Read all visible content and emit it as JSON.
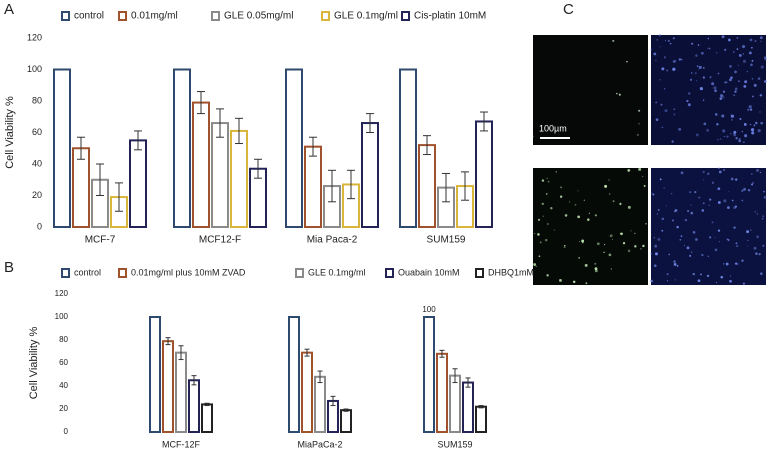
{
  "panel_labels": [
    "A",
    "B",
    "C"
  ],
  "image_panel": {
    "scale_bar": "100µm"
  },
  "chart_data": [
    {
      "type": "bar",
      "ylabel": "Cell Viability %",
      "categories": [
        "MCF-7",
        "MCF12-F",
        "Mia Paca-2",
        "SUM159"
      ],
      "series": [
        {
          "name": "control",
          "color": "#2e4a6e",
          "values": [
            100,
            100,
            100,
            100
          ]
        },
        {
          "name": "0.01mg/ml",
          "color": "#a0522d",
          "values": [
            50,
            79,
            51,
            52
          ],
          "errors": [
            7,
            7,
            6,
            6
          ]
        },
        {
          "name": "GLE 0.05mg/ml",
          "color": "#8a8a8a",
          "values": [
            30,
            66,
            26,
            25
          ],
          "errors": [
            10,
            9,
            10,
            9
          ]
        },
        {
          "name": "GLE 0.1mg/ml",
          "color": "#d9b53a",
          "values": [
            19,
            61,
            27,
            26
          ],
          "errors": [
            9,
            8,
            9,
            9
          ]
        },
        {
          "name": "Cis-platin 10mM",
          "color": "#232357",
          "values": [
            55,
            37,
            66,
            67
          ],
          "errors": [
            6,
            6,
            6,
            6
          ]
        }
      ],
      "ylim": [
        0,
        120
      ],
      "yticks": [
        0,
        20,
        40,
        60,
        80,
        100,
        120
      ],
      "grid": false
    },
    {
      "type": "bar",
      "ylabel": "Cell Viability %",
      "categories": [
        "MCF-12F",
        "MiaPaCa-2",
        "SUM159"
      ],
      "series": [
        {
          "name": "control",
          "color": "#2e4a6e",
          "values": [
            100,
            100,
            100
          ],
          "value_labels": [
            null,
            null,
            "100"
          ]
        },
        {
          "name": "0.01mg/ml plus 10mM ZVAD",
          "color": "#a0522d",
          "values": [
            79,
            69,
            68
          ],
          "errors": [
            3,
            3,
            3
          ]
        },
        {
          "name": "GLE 0.1mg/ml",
          "color": "#8a8a8a",
          "values": [
            69,
            48,
            49
          ],
          "errors": [
            6,
            5,
            6
          ]
        },
        {
          "name": "Ouabain 10mM",
          "color": "#232357",
          "values": [
            45,
            27,
            43
          ],
          "errors": [
            4,
            4,
            4
          ]
        },
        {
          "name": "DHBQ1mM",
          "color": "#222222",
          "values": [
            24,
            19,
            22
          ],
          "errors": [
            1,
            1,
            1
          ]
        }
      ],
      "ylim": [
        0,
        120
      ],
      "yticks": [
        0,
        20,
        40,
        60,
        80,
        100,
        120
      ],
      "grid": false
    }
  ]
}
